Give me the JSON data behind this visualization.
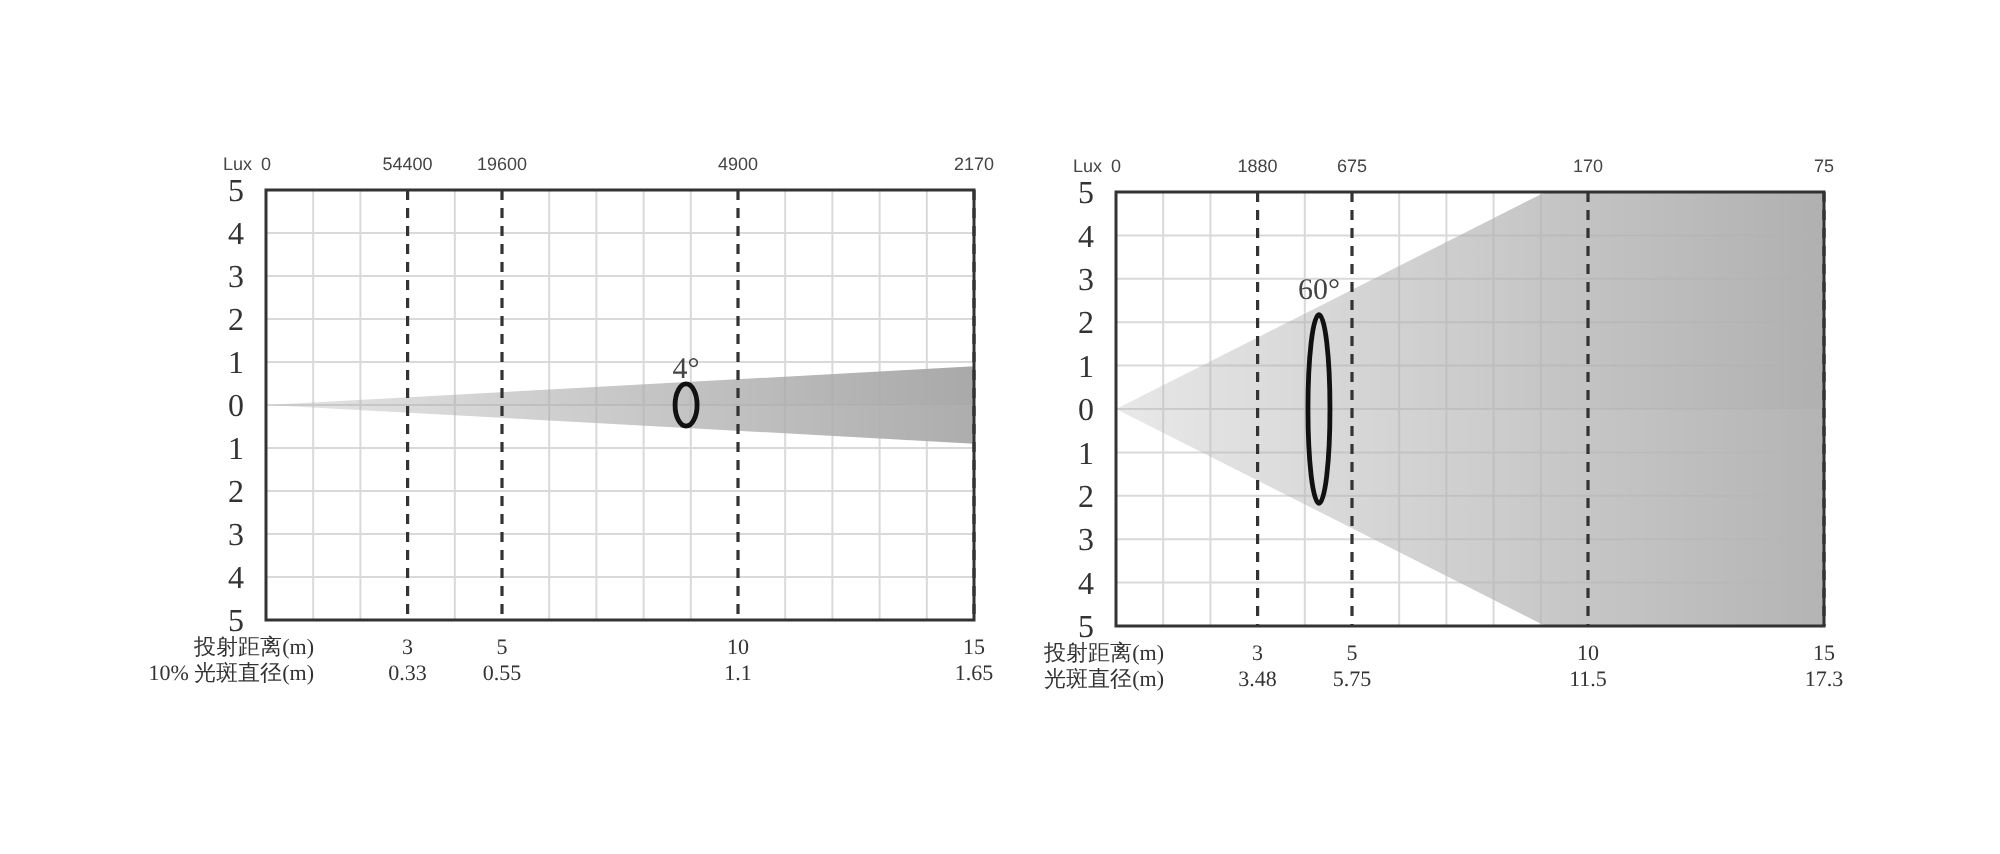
{
  "chart_data": [
    {
      "type": "area",
      "x": [
        0,
        15
      ],
      "series": [
        {
          "color": "#a9a9a9",
          "values": [
            0,
            0.9
          ]
        },
        {
          "color": "#adadad",
          "values": [
            0,
            -0.9
          ]
        }
      ],
      "xlabel": "投射距离(m)",
      "xlim": [
        0,
        15
      ],
      "xticks": [
        {
          "value": 0,
          "label": null
        },
        {
          "value": 1,
          "label": null
        },
        {
          "value": 2,
          "label": null
        },
        3,
        {
          "value": 4,
          "label": null
        },
        5,
        {
          "value": 6,
          "label": null
        },
        {
          "value": 7,
          "label": null
        },
        {
          "value": 8,
          "label": null
        },
        {
          "value": 9,
          "label": null
        },
        10,
        {
          "value": 11,
          "label": null
        },
        {
          "value": 12,
          "label": null
        },
        {
          "value": 13,
          "label": null
        },
        {
          "value": 14,
          "label": null
        },
        15
      ],
      "ylim": [
        -5,
        5
      ],
      "yticks": [
        5,
        4,
        3,
        2,
        1,
        0,
        {
          "value": -1,
          "label": "1"
        },
        {
          "value": -2,
          "label": "2"
        },
        {
          "value": -3,
          "label": "3"
        },
        {
          "value": -4,
          "label": "4"
        },
        {
          "value": -5,
          "label": "5"
        }
      ],
      "grid": true,
      "annotations": [
        "Lux",
        "0",
        "54400",
        "19600",
        "4900",
        "2170",
        "10% 光斑直径(m)",
        "0.33",
        "0.55",
        "1.1",
        "1.65",
        {
          "text": "4°",
          "x": 8.9,
          "y": 0.5
        }
      ]
    },
    {
      "type": "area",
      "x": [
        0,
        9.1,
        15
      ],
      "series": [
        {
          "color": "#b0b0b0",
          "values": [
            0,
            5,
            5
          ]
        },
        {
          "color": "#b4b4b4",
          "values": [
            0,
            -5,
            -5
          ]
        }
      ],
      "xlabel": "投射距离(m)",
      "xlim": [
        0,
        15
      ],
      "xticks": [
        {
          "value": 0,
          "label": null
        },
        {
          "value": 1,
          "label": null
        },
        {
          "value": 2,
          "label": null
        },
        3,
        {
          "value": 4,
          "label": null
        },
        5,
        {
          "value": 6,
          "label": null
        },
        {
          "value": 7,
          "label": null
        },
        {
          "value": 8,
          "label": null
        },
        {
          "value": 9,
          "label": null
        },
        10,
        15
      ],
      "ylim": [
        -5,
        5
      ],
      "yticks": [
        5,
        4,
        3,
        2,
        1,
        0,
        {
          "value": -1,
          "label": "1"
        },
        {
          "value": -2,
          "label": "2"
        },
        {
          "value": -3,
          "label": "3"
        },
        {
          "value": -4,
          "label": "4"
        },
        {
          "value": -5,
          "label": "5"
        }
      ],
      "grid": true,
      "annotations": [
        "Lux",
        "0",
        "1880",
        "675",
        "170",
        "75",
        "光斑直径(m)",
        "3.48",
        "5.75",
        "11.5",
        "17.3",
        {
          "text": "60°",
          "x": 4.3,
          "y": 2.4
        }
      ]
    }
  ]
}
